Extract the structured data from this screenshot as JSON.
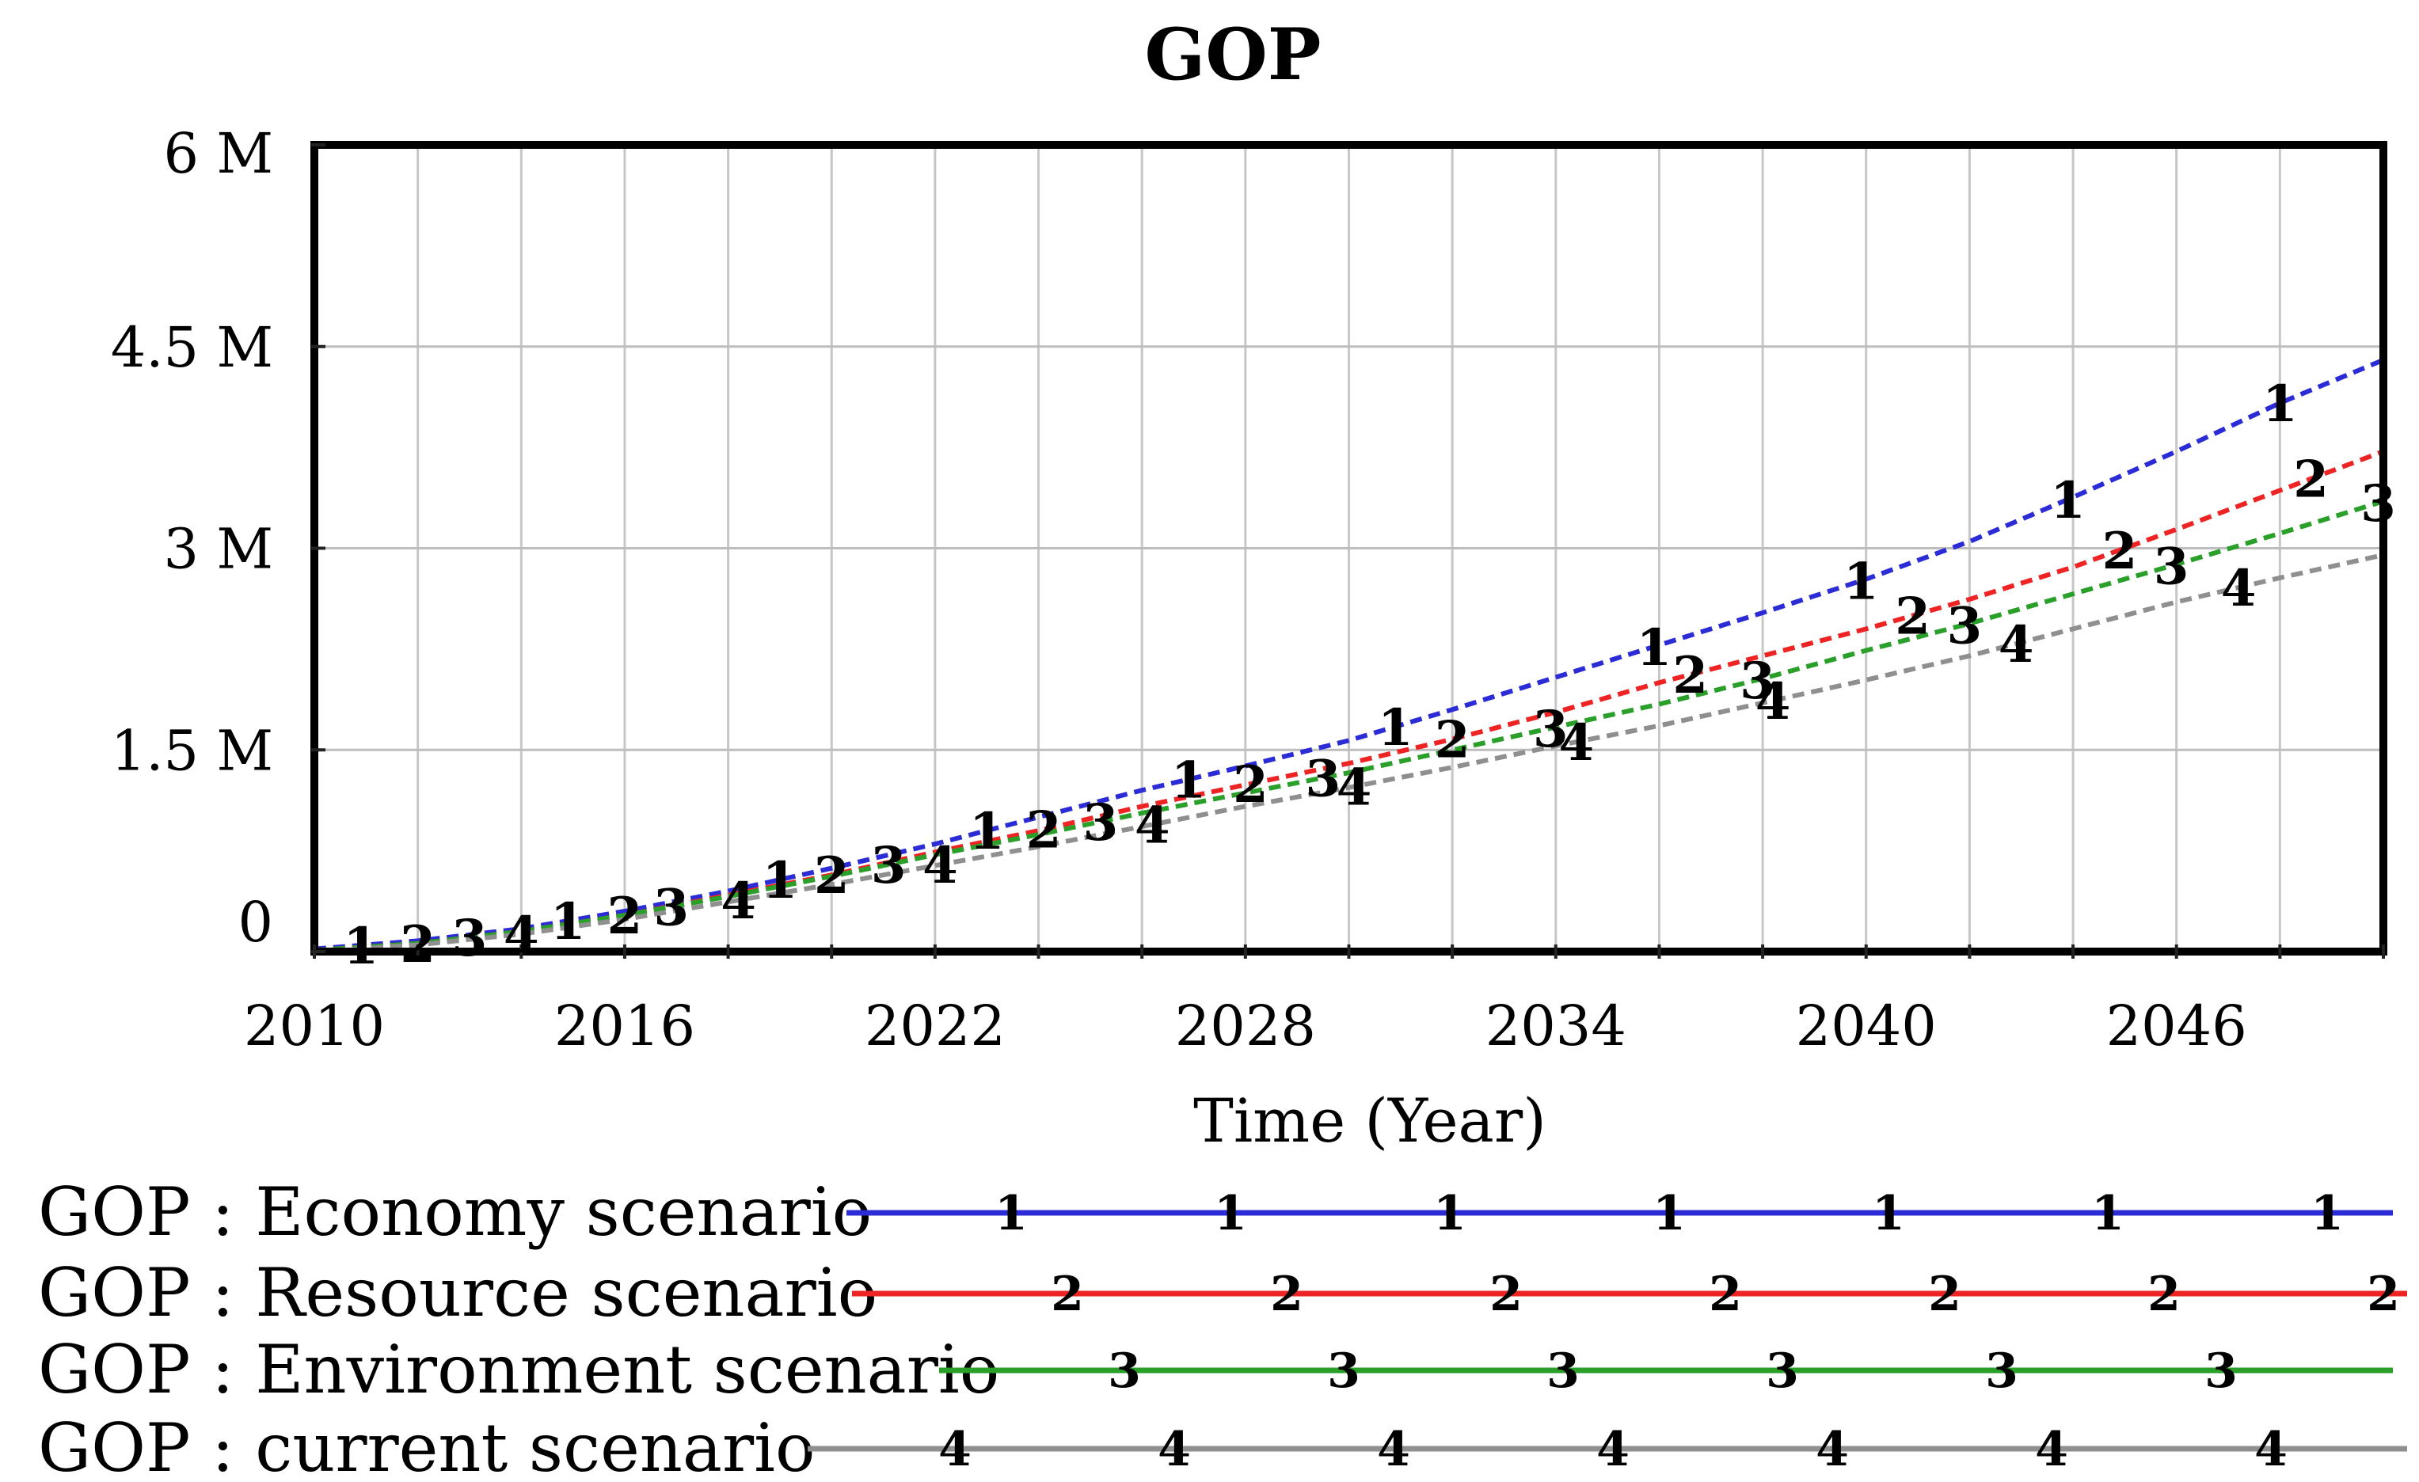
{
  "title": "GOP",
  "chart_data": {
    "type": "line",
    "title": "GOP",
    "xlabel": "Time (Year)",
    "ylabel": "",
    "x_range": [
      2010,
      2050
    ],
    "y_range_millions": [
      0,
      6
    ],
    "y_unit": "M",
    "grid": true,
    "x_grid_step_years": 2,
    "y_grid_step_millions": 1.5,
    "legend_position": "bottom-left",
    "x_tick_labels": [
      "2010",
      "2016",
      "2022",
      "2028",
      "2034",
      "2040",
      "2046"
    ],
    "x_tick_years": [
      2010,
      2016,
      2022,
      2028,
      2034,
      2040,
      2046
    ],
    "y_tick_labels": [
      "6 M",
      "4.5 M",
      "3 M",
      "1.5 M",
      "0"
    ],
    "y_tick_values_millions": [
      6,
      4.5,
      3,
      1.5,
      0
    ],
    "x_years": [
      2010,
      2012,
      2014,
      2016,
      2018,
      2020,
      2022,
      2024,
      2026,
      2028,
      2030,
      2032,
      2034,
      2036,
      2038,
      2040,
      2042,
      2044,
      2046,
      2048,
      2050
    ],
    "series": [
      {
        "name": "GOP : Economy scenario",
        "marker": "1",
        "color": "#2c2cd6",
        "values_millions": [
          0.02,
          0.08,
          0.17,
          0.3,
          0.45,
          0.62,
          0.8,
          1.0,
          1.2,
          1.38,
          1.57,
          1.8,
          2.04,
          2.28,
          2.52,
          2.77,
          3.05,
          3.38,
          3.72,
          4.08,
          4.4
        ],
        "marker_years": [
          2010.9,
          2014.9,
          2019.0,
          2023.0,
          2026.9,
          2030.9,
          2035.9,
          2039.9,
          2043.9,
          2048.0
        ],
        "legend_marker_count": 7
      },
      {
        "name": "GOP : Resource scenario",
        "marker": "2",
        "color": "#ee2424",
        "values_millions": [
          0.01,
          0.06,
          0.15,
          0.27,
          0.42,
          0.57,
          0.74,
          0.9,
          1.08,
          1.24,
          1.4,
          1.58,
          1.78,
          2.0,
          2.2,
          2.4,
          2.62,
          2.86,
          3.14,
          3.43,
          3.72
        ],
        "marker_years": [
          2012.0,
          2016.0,
          2020.0,
          2024.1,
          2028.1,
          2032.0,
          2036.6,
          2040.9,
          2044.9,
          2048.6
        ],
        "legend_marker_count": 7
      },
      {
        "name": "GOP : Environment scenario",
        "marker": "3",
        "color": "#2aa02a",
        "values_millions": [
          0.01,
          0.06,
          0.15,
          0.27,
          0.41,
          0.56,
          0.72,
          0.87,
          1.03,
          1.18,
          1.33,
          1.5,
          1.67,
          1.84,
          2.03,
          2.24,
          2.44,
          2.66,
          2.88,
          3.11,
          3.35
        ],
        "marker_years": [
          2013.0,
          2016.9,
          2021.1,
          2025.2,
          2029.5,
          2033.9,
          2037.9,
          2041.9,
          2045.9,
          2049.9
        ],
        "legend_marker_count": 6
      },
      {
        "name": "GOP : current scenario",
        "marker": "4",
        "color": "#8f8f8f",
        "values_millions": [
          0.0,
          0.05,
          0.13,
          0.24,
          0.37,
          0.5,
          0.64,
          0.78,
          0.93,
          1.08,
          1.22,
          1.37,
          1.53,
          1.68,
          1.85,
          2.02,
          2.2,
          2.4,
          2.6,
          2.78,
          2.95
        ],
        "marker_years": [
          2014.0,
          2018.2,
          2022.1,
          2026.2,
          2030.1,
          2034.4,
          2038.2,
          2042.9,
          2047.2
        ],
        "legend_marker_count": 7
      }
    ]
  }
}
